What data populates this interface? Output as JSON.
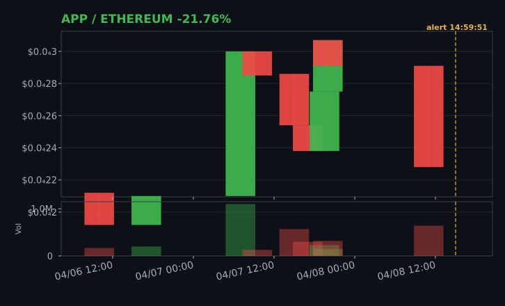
{
  "chart_data": {
    "type": "candlestick",
    "title": "APP / ETHEREUM  -21.76%",
    "colors": {
      "background": "#0d1117",
      "panel_border": "#3a3f47",
      "grid": "#1f2630",
      "up": "#3fb950",
      "down": "#f04a45",
      "title": "#3fb950",
      "alert": "#e3b341"
    },
    "price_axis": {
      "ylim": [
        2.095e-05,
        3.125e-05
      ],
      "ticks": [
        {
          "value": 2e-05,
          "label": "$0.0₄2"
        },
        {
          "value": 2.2e-05,
          "label": "$0.0₄22"
        },
        {
          "value": 2.4e-05,
          "label": "$0.0₄24"
        },
        {
          "value": 2.6e-05,
          "label": "$0.0₄26"
        },
        {
          "value": 2.8e-05,
          "label": "$0.0₄28"
        },
        {
          "value": 3e-05,
          "label": "$0.0₄3"
        }
      ]
    },
    "volume_axis": {
      "ylabel": "Vol",
      "ylim": [
        0,
        1150000
      ],
      "ticks": [
        {
          "value": 0,
          "label": "0"
        },
        {
          "value": 1000000,
          "label": "1.0M"
        }
      ]
    },
    "x_axis": {
      "ticks": [
        {
          "time": "2025-04-06T12:00",
          "label": "04/06 12:00"
        },
        {
          "time": "2025-04-07T00:00",
          "label": "04/07 00:00"
        },
        {
          "time": "2025-04-07T12:00",
          "label": "04/07 12:00"
        },
        {
          "time": "2025-04-08T00:00",
          "label": "04/08 00:00"
        },
        {
          "time": "2025-04-08T12:00",
          "label": "04/08 12:00"
        }
      ]
    },
    "candles": [
      {
        "time": "2025-04-06T10:00",
        "open": 2.12e-05,
        "high": 2.12e-05,
        "low": 1.92e-05,
        "close": 1.92e-05,
        "volume": 170000
      },
      {
        "time": "2025-04-06T17:00",
        "open": 1.92e-05,
        "high": 2.1e-05,
        "low": 1.92e-05,
        "close": 2.1e-05,
        "volume": 200000
      },
      {
        "time": "2025-04-07T07:00",
        "open": 2.1e-05,
        "high": 3e-05,
        "low": 2.1e-05,
        "close": 3e-05,
        "volume": 1100000
      },
      {
        "time": "2025-04-07T09:30",
        "open": 3e-05,
        "high": 3e-05,
        "low": 2.85e-05,
        "close": 2.85e-05,
        "volume": 130000
      },
      {
        "time": "2025-04-07T15:00",
        "open": 2.86e-05,
        "high": 2.86e-05,
        "low": 2.54e-05,
        "close": 2.54e-05,
        "volume": 570000
      },
      {
        "time": "2025-04-07T17:00",
        "open": 2.54e-05,
        "high": 2.54e-05,
        "low": 2.38e-05,
        "close": 2.38e-05,
        "volume": 300000
      },
      {
        "time": "2025-04-07T19:30",
        "open": 2.38e-05,
        "high": 2.75e-05,
        "low": 2.38e-05,
        "close": 2.75e-05,
        "volume": 230000
      },
      {
        "time": "2025-04-07T20:00",
        "open": 2.75e-05,
        "high": 3.07e-05,
        "low": 2.75e-05,
        "close": 3.07e-05,
        "volume": 150000
      },
      {
        "time": "2025-04-07T20:00",
        "open": 3.07e-05,
        "high": 3.07e-05,
        "low": 2.91e-05,
        "close": 2.91e-05,
        "volume": 320000
      },
      {
        "time": "2025-04-08T11:00",
        "open": 2.91e-05,
        "high": 2.91e-05,
        "low": 2.28e-05,
        "close": 2.28e-05,
        "volume": 640000
      }
    ],
    "candle_width_hours": 4.4,
    "alert": {
      "time": "2025-04-08T14:59:51",
      "label": "alert 14:59:51"
    }
  }
}
